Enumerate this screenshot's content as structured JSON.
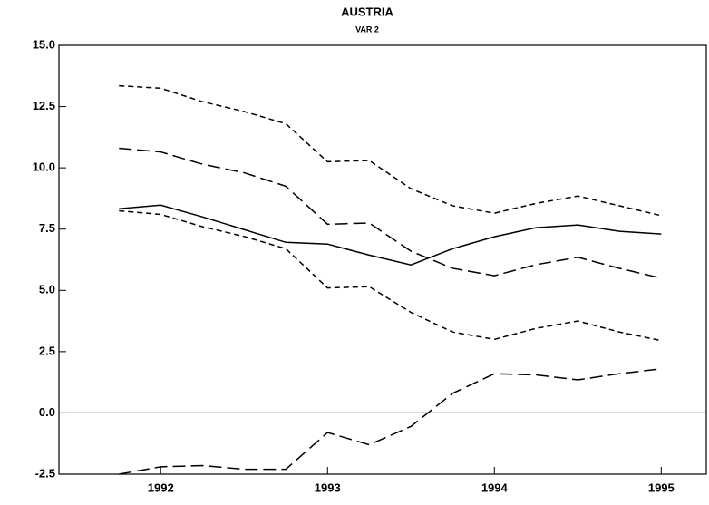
{
  "chart_data": {
    "type": "line",
    "title": "AUSTRIA",
    "subtitle": "VAR 2",
    "x": [
      1991.75,
      1992.0,
      1992.25,
      1992.5,
      1992.75,
      1993.0,
      1993.25,
      1993.5,
      1993.75,
      1994.0,
      1994.25,
      1994.5,
      1994.75,
      1995.0
    ],
    "series": [
      {
        "color": "#000000",
        "dash": "solid",
        "values": [
          8.33,
          8.48,
          8.0,
          7.48,
          6.96,
          6.89,
          6.44,
          6.04,
          6.7,
          7.19,
          7.56,
          7.67,
          7.41,
          7.3
        ]
      },
      {
        "color": "#000000",
        "dash": "long",
        "values": [
          10.8,
          10.65,
          10.15,
          9.8,
          9.25,
          7.7,
          7.75,
          6.6,
          5.9,
          5.6,
          6.05,
          6.35,
          5.9,
          5.5
        ]
      },
      {
        "color": "#000000",
        "dash": "short",
        "values": [
          13.35,
          13.25,
          12.7,
          12.3,
          11.8,
          10.25,
          10.3,
          9.15,
          8.45,
          8.15,
          8.55,
          8.85,
          8.45,
          8.05
        ]
      },
      {
        "color": "#000000",
        "dash": "short",
        "values": [
          8.25,
          8.1,
          7.6,
          7.2,
          6.7,
          5.1,
          5.15,
          4.1,
          3.3,
          3.0,
          3.45,
          3.75,
          3.3,
          2.95
        ]
      },
      {
        "color": "#000000",
        "dash": "long",
        "values": [
          -2.5,
          -2.2,
          -2.15,
          -2.3,
          -2.3,
          -0.8,
          -1.3,
          -0.55,
          0.8,
          1.6,
          1.55,
          1.35,
          1.6,
          1.8
        ]
      }
    ],
    "xlim": [
      1991.39,
      1995.27
    ],
    "xticks": [
      1992,
      1993,
      1994,
      1995
    ],
    "ylim": [
      -2.5,
      15.0
    ],
    "yticks": [
      {
        "value": -2.5,
        "label": "-2.5"
      },
      {
        "value": 0,
        "label": "0.0"
      },
      {
        "value": 2.5,
        "label": "2.5"
      },
      {
        "value": 5,
        "label": "5.0"
      },
      {
        "value": 7.5,
        "label": "7.5"
      },
      {
        "value": 10,
        "label": "10.0"
      },
      {
        "value": 12.5,
        "label": "12.5"
      },
      {
        "value": 15,
        "label": "15.0"
      }
    ],
    "zero_line": true,
    "grid": false
  }
}
